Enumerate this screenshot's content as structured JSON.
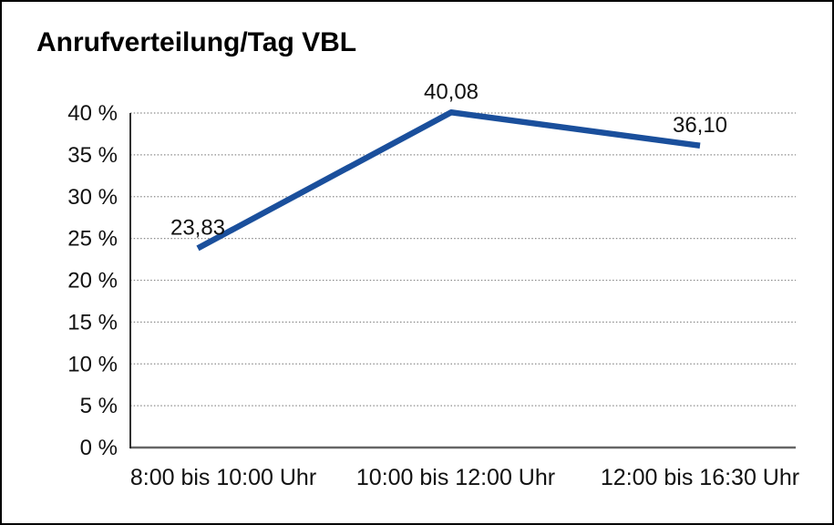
{
  "chart_data": {
    "type": "line",
    "title": "Anrufverteilung/Tag VBL",
    "categories": [
      "8:00 bis 10:00 Uhr",
      "10:00 bis 12:00 Uhr",
      "12:00 bis 16:30 Uhr"
    ],
    "values": [
      23.83,
      40.08,
      36.1
    ],
    "value_labels": [
      "23,83",
      "40,08",
      "36,10"
    ],
    "xlabel": "",
    "ylabel": "",
    "ylim": [
      0,
      40
    ],
    "ytick_step": 5,
    "ytick_labels": [
      "0 %",
      "5 %",
      "10 %",
      "15 %",
      "20 %",
      "25 %",
      "30 %",
      "35 %",
      "40 %"
    ],
    "grid": "horizontal-dotted",
    "legend": "none",
    "colors": {
      "line": "#1a4f9c",
      "grid": "#8c8c8c",
      "axis": "#1a1a1a",
      "baseline": "#666666",
      "text": "#111111"
    }
  }
}
